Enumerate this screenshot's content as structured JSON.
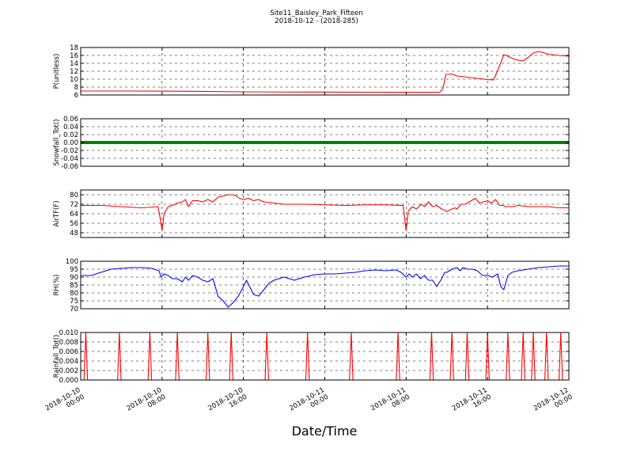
{
  "chart_data": {
    "type": "line",
    "title": "Site11_Baisley_Park_Fifteen",
    "subtitle": "2018-10-12 - (2018-285)",
    "xlabel": "Date/Time",
    "x_tick_labels": [
      [
        "2018-10-10",
        "00:00"
      ],
      [
        "2018-10-10",
        "08:00"
      ],
      [
        "2018-10-10",
        "16:00"
      ],
      [
        "2018-10-11",
        "00:00"
      ],
      [
        "2018-10-11",
        "08:00"
      ],
      [
        "2018-10-11",
        "16:00"
      ],
      [
        "2018-10-12",
        "00:00"
      ]
    ],
    "x_range_hours": [
      0,
      48
    ],
    "grid": true,
    "panels": [
      {
        "ylabel": "P(unitless)",
        "ylim": [
          6,
          18
        ],
        "yticks": [
          6,
          8,
          10,
          12,
          14,
          16,
          18
        ],
        "color": "#ff0000",
        "series": [
          {
            "x": [
              0,
              4,
              8,
              12,
              16,
              20,
              24,
              28,
              31.8,
              35.3,
              35.6,
              35.9,
              36.5,
              37,
              38,
              39,
              40,
              40.6,
              40.9,
              41.2,
              41.6,
              42,
              42.5,
              43,
              43.5,
              44,
              44.5,
              45,
              45.5,
              46,
              47,
              48
            ],
            "y": [
              7.0,
              7.0,
              6.98,
              6.92,
              6.8,
              6.75,
              6.73,
              6.7,
              6.68,
              6.7,
              7.5,
              11.2,
              11.3,
              10.8,
              10.5,
              10.2,
              9.9,
              9.8,
              11.6,
              13.5,
              16.2,
              15.8,
              15.2,
              14.8,
              14.6,
              15.5,
              16.6,
              17.0,
              16.7,
              16.3,
              16.0,
              15.8
            ]
          }
        ]
      },
      {
        "ylabel": "Snowfall_Tot()",
        "ylim": [
          -0.06,
          0.06
        ],
        "yticks": [
          -0.06,
          -0.04,
          -0.02,
          0.0,
          0.02,
          0.04,
          0.06
        ],
        "color": "#008000",
        "series": [
          {
            "x": [
              0,
              48
            ],
            "y": [
              0,
              0
            ]
          }
        ]
      },
      {
        "ylabel": "AirTF(F)",
        "ylim": [
          44,
          84
        ],
        "yticks": [
          48,
          56,
          64,
          72,
          80
        ],
        "color": "#ff0000",
        "series": [
          {
            "x": [
              0,
              2,
              4,
              6,
              7.6,
              7.8,
              8.0,
              8.2,
              8.6,
              9.0,
              9.5,
              10.0,
              10.3,
              10.6,
              11,
              11.5,
              12,
              12.5,
              13,
              13.5,
              14.0,
              14.5,
              15.0,
              15.3,
              15.6,
              16,
              16.5,
              17,
              17.5,
              18,
              19,
              20,
              22,
              24,
              26,
              28,
              30,
              31.7,
              31.85,
              32.0,
              32.2,
              32.6,
              33.0,
              33.5,
              33.8,
              34.2,
              34.6,
              35,
              35.5,
              36,
              36.5,
              36.8,
              37,
              37.4,
              37.8,
              38.0,
              38.4,
              38.8,
              39.2,
              39.6,
              40.0,
              40.4,
              40.8,
              41.2,
              41.5,
              41.8,
              42.5,
              43,
              44,
              45,
              46,
              47,
              48
            ],
            "y": [
              71,
              71,
              70,
              69,
              70,
              61,
              50,
              64,
              70,
              71,
              73,
              74,
              76,
              70,
              75,
              75,
              74,
              76,
              74,
              78,
              79,
              80,
              80,
              79,
              77,
              76,
              77,
              75,
              76,
              74,
              73,
              72,
              72,
              71.5,
              71,
              71.5,
              71.5,
              71,
              60,
              50,
              66,
              70,
              68,
              72,
              70,
              74,
              70,
              71,
              68,
              66,
              68,
              69,
              68,
              72,
              72,
              73,
              75,
              77,
              73,
              74,
              75,
              73,
              76,
              71,
              71,
              70,
              70,
              71,
              70,
              70,
              70,
              69,
              69
            ]
          }
        ]
      },
      {
        "ylabel": "RH(%)",
        "ylim": [
          70,
          100
        ],
        "yticks": [
          70,
          75,
          80,
          85,
          90,
          95,
          100
        ],
        "color": "#0000ff",
        "series": [
          {
            "x": [
              0,
              1,
              2,
              3,
              4,
              5,
              6,
              7,
              7.7,
              7.9,
              8.2,
              8.6,
              9.0,
              9.5,
              10,
              10.3,
              10.6,
              11,
              11.5,
              12,
              12.5,
              13,
              13.5,
              14,
              14.5,
              15,
              15.5,
              16,
              16.3,
              16.6,
              17,
              17.5,
              18,
              18.5,
              19,
              19.5,
              20,
              21,
              22,
              23,
              24,
              25,
              26,
              27,
              28,
              29,
              30,
              31,
              31.5,
              32,
              32.3,
              32.6,
              33,
              33.4,
              33.8,
              34.2,
              34.6,
              35,
              35.4,
              35.8,
              36,
              36.5,
              37,
              37.3,
              37.6,
              38,
              38.5,
              39,
              39.5,
              40,
              40.5,
              41,
              41.3,
              41.6,
              42,
              42.4,
              43,
              44,
              45,
              46,
              47,
              48
            ],
            "y": [
              91,
              91,
              93,
              95,
              95.5,
              96,
              96,
              95.5,
              94,
              90,
              92,
              91,
              89,
              89,
              87,
              90,
              88,
              91,
              90,
              88,
              87,
              89,
              78,
              75,
              71,
              74,
              78,
              84,
              88,
              84,
              79,
              78,
              82,
              86,
              88,
              89,
              90,
              88,
              90,
              91.5,
              92,
              92,
              92.5,
              93,
              94,
              94.5,
              94,
              94.5,
              93,
              90,
              92,
              90,
              92,
              89,
              91,
              88,
              88,
              84,
              88,
              93,
              93,
              95,
              96,
              94,
              96,
              95,
              95,
              94,
              91,
              91,
              90,
              92,
              84,
              82,
              91,
              93,
              94,
              95,
              96,
              96.5,
              97,
              97
            ]
          }
        ]
      },
      {
        "ylabel": "Rainfall_Tot()",
        "ylim": [
          0,
          0.01
        ],
        "yticks": [
          0.0,
          0.002,
          0.004,
          0.006,
          0.008,
          0.01
        ],
        "color": "#ff0000",
        "spikes_x_hours": [
          0.5,
          3.8,
          6.8,
          9.5,
          12.5,
          14.8,
          18.3,
          22.3,
          26.6,
          31.2,
          34.5,
          36.5,
          38.0,
          40.0,
          42.0,
          43.5,
          44.5,
          45.8,
          47.2
        ],
        "spike_value": 0.01
      }
    ]
  }
}
